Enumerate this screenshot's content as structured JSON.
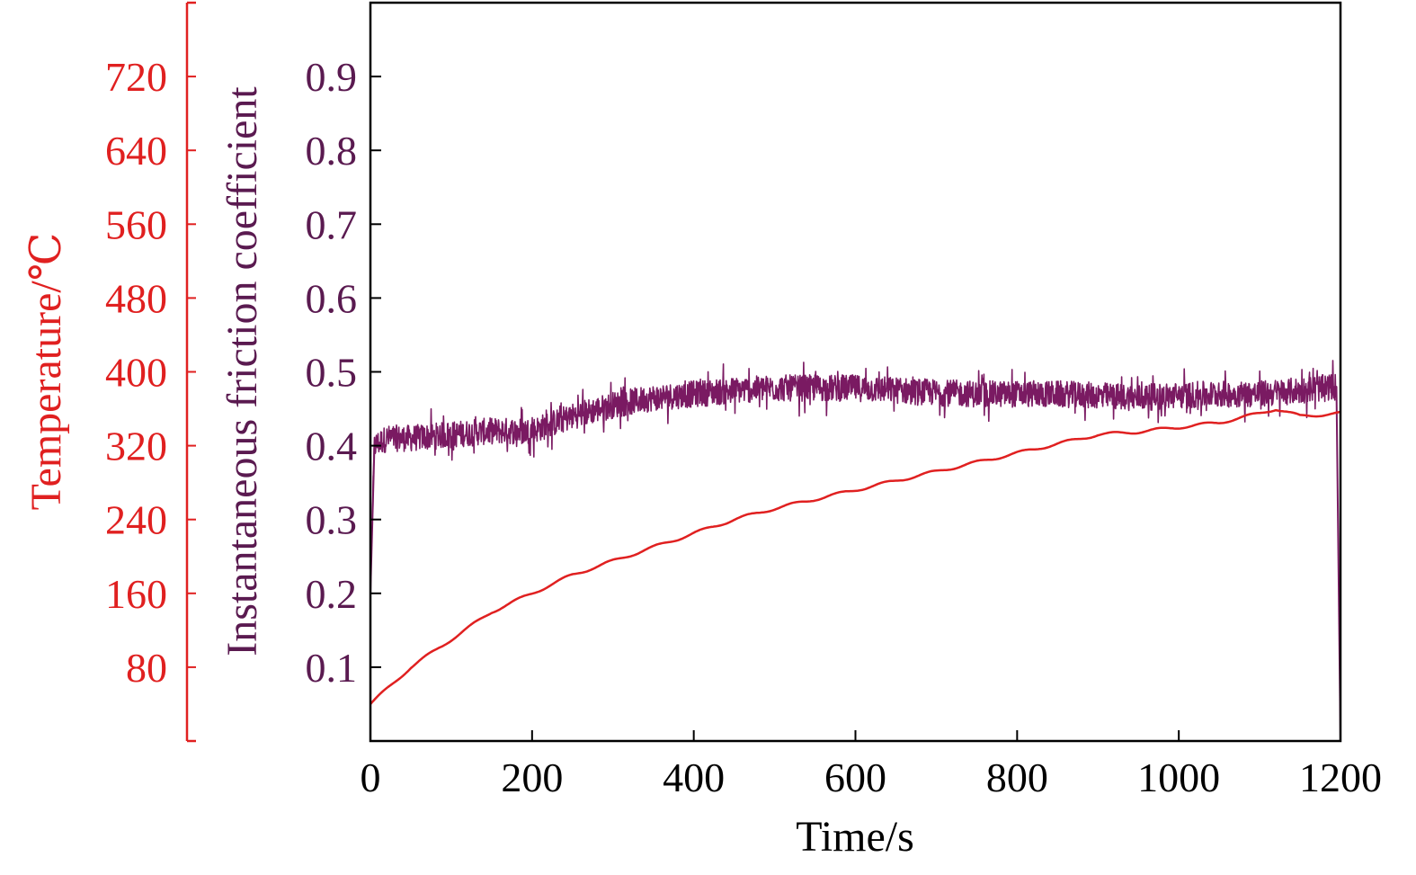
{
  "chart_data": {
    "type": "line",
    "title": "",
    "xlabel": "Time/s",
    "ylabel_left_outer": "Temperature/℃",
    "ylabel_left_inner": "Instantaneous friction coefficient",
    "xlim": [
      0,
      1200
    ],
    "ylim_friction": [
      0,
      1.0
    ],
    "ylim_temperature": [
      0,
      800
    ],
    "x_ticks": [
      "0",
      "200",
      "400",
      "600",
      "800",
      "1000",
      "1200"
    ],
    "friction_ticks": [
      "0.1",
      "0.2",
      "0.3",
      "0.4",
      "0.5",
      "0.6",
      "0.7",
      "0.8",
      "0.9"
    ],
    "temperature_ticks": [
      "80",
      "160",
      "240",
      "320",
      "400",
      "480",
      "560",
      "640",
      "720"
    ],
    "grid": false,
    "colors": {
      "temperature": "#e02020",
      "friction": "#7a1a62",
      "friction_axis": "#5a1a50",
      "axis": "#000000"
    },
    "series": [
      {
        "axis": "friction",
        "x": [
          0,
          5,
          20,
          50,
          100,
          150,
          200,
          250,
          300,
          350,
          400,
          450,
          500,
          550,
          600,
          650,
          700,
          750,
          800,
          850,
          900,
          950,
          1000,
          1050,
          1100,
          1150,
          1195,
          1200
        ],
        "values": [
          0.2,
          0.4,
          0.41,
          0.41,
          0.415,
          0.42,
          0.42,
          0.44,
          0.455,
          0.465,
          0.47,
          0.475,
          0.478,
          0.478,
          0.478,
          0.475,
          0.472,
          0.47,
          0.47,
          0.47,
          0.468,
          0.465,
          0.468,
          0.47,
          0.47,
          0.475,
          0.48,
          0.0
        ]
      },
      {
        "axis": "temperature",
        "x": [
          0,
          50,
          100,
          150,
          200,
          250,
          300,
          350,
          400,
          450,
          500,
          550,
          600,
          650,
          700,
          750,
          800,
          850,
          900,
          950,
          1000,
          1050,
          1100,
          1120,
          1150,
          1200
        ],
        "values": [
          40,
          80,
          110,
          140,
          160,
          180,
          195,
          210,
          225,
          240,
          252,
          262,
          272,
          282,
          292,
          302,
          312,
          322,
          332,
          335,
          340,
          345,
          355,
          360,
          352,
          355
        ]
      }
    ]
  }
}
